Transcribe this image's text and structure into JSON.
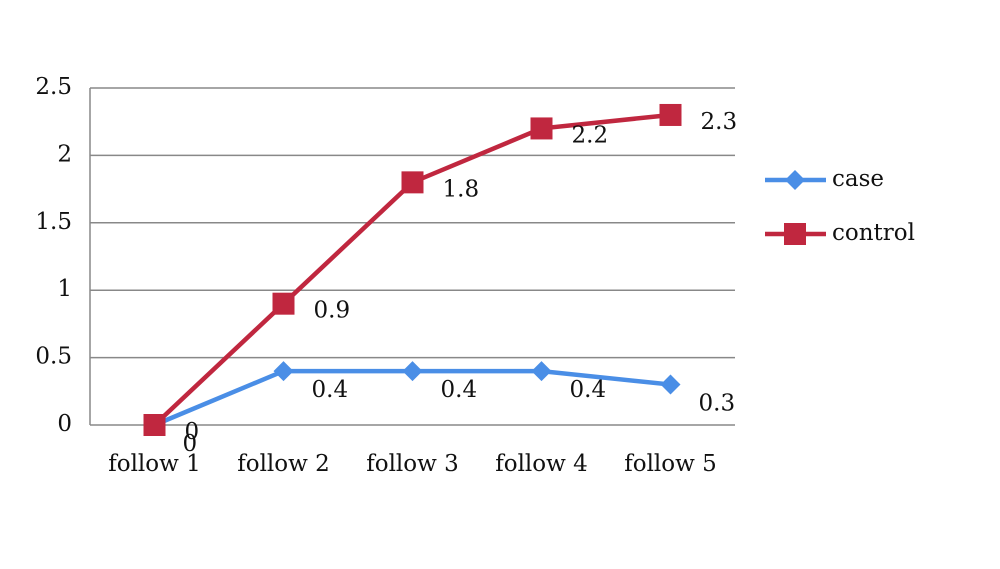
{
  "chart_data": {
    "type": "line",
    "categories": [
      "follow 1",
      "follow 2",
      "follow 3",
      "follow 4",
      "follow 5"
    ],
    "series": [
      {
        "name": "case",
        "color": "#4a8ee6",
        "marker": "diamond",
        "values": [
          0,
          0.4,
          0.4,
          0.4,
          0.3
        ]
      },
      {
        "name": "control",
        "color": "#c0273f",
        "marker": "square",
        "values": [
          0,
          0.9,
          1.8,
          2.2,
          2.3
        ]
      }
    ],
    "ylim": [
      0,
      2.5
    ],
    "yticks": [
      0,
      0.5,
      1,
      1.5,
      2,
      2.5
    ],
    "grid": true,
    "legend": "right"
  }
}
